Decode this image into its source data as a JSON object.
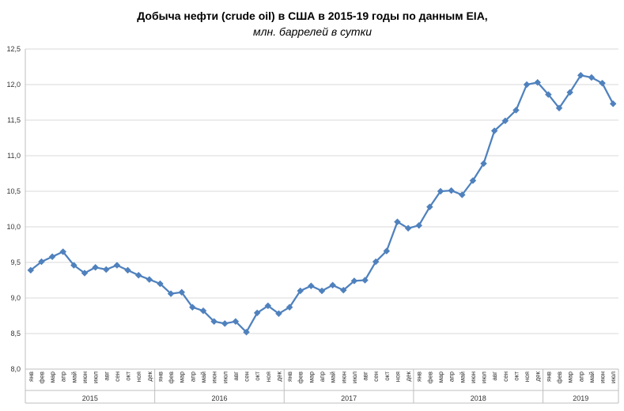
{
  "chart_data": {
    "type": "line",
    "title": "Добыча  нефти (crude oil) в США в 2015-19 годы по данным  EIA,",
    "subtitle": "млн. баррелей в сутки",
    "ylim": [
      8.0,
      12.5
    ],
    "yticks": [
      "8,0",
      "8,5",
      "9,0",
      "9,5",
      "10,0",
      "10,5",
      "11,0",
      "11,5",
      "12,0",
      "12,5"
    ],
    "grid": true,
    "months": [
      "янв",
      "фев",
      "мар",
      "апр",
      "май",
      "июн",
      "июл",
      "авг",
      "сен",
      "окт",
      "ноя",
      "дек"
    ],
    "years": [
      {
        "label": "2015",
        "count": 12
      },
      {
        "label": "2016",
        "count": 12
      },
      {
        "label": "2017",
        "count": 12
      },
      {
        "label": "2018",
        "count": 12
      },
      {
        "label": "2019",
        "count": 7
      }
    ],
    "line_color": "#4f81bd",
    "series": [
      {
        "values": [
          9.39,
          9.51,
          9.58,
          9.65,
          9.46,
          9.35,
          9.43,
          9.4,
          9.46,
          9.39,
          9.32,
          9.26,
          9.2,
          9.06,
          9.08,
          8.87,
          8.82,
          8.67,
          8.64,
          8.67,
          8.52,
          8.79,
          8.89,
          8.78,
          8.87,
          9.1,
          9.17,
          9.1,
          9.18,
          9.11,
          9.24,
          9.25,
          9.51,
          9.66,
          10.07,
          9.98,
          10.02,
          10.28,
          10.5,
          10.51,
          10.45,
          10.65,
          10.89,
          11.35,
          11.49,
          11.64,
          12.0,
          12.03,
          11.86,
          11.67,
          11.89,
          12.13,
          12.1,
          12.02,
          11.73
        ]
      }
    ]
  }
}
